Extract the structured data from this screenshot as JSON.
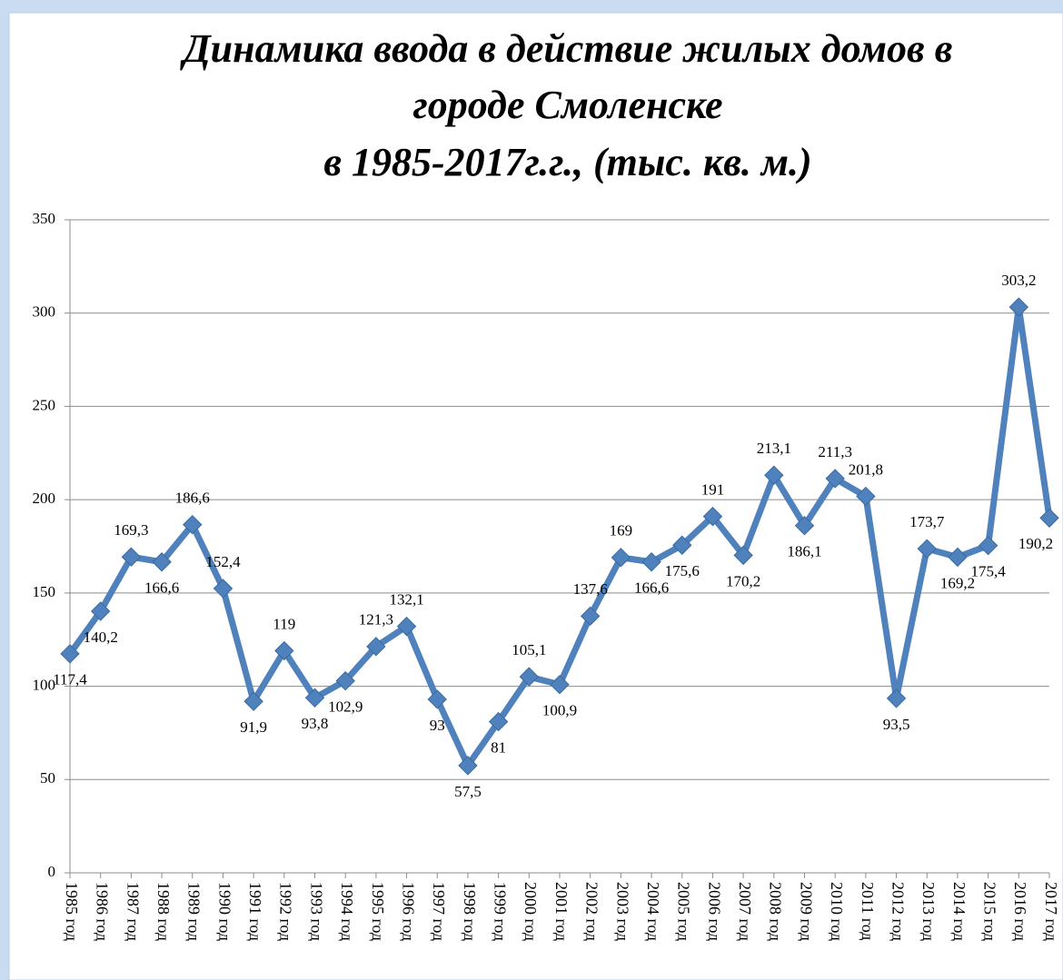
{
  "chart_data": {
    "type": "line",
    "title": [
      "Динамика ввода в действие жилых домов в",
      "городе Смоленске",
      "в 1985-2017г.г., (тыс. кв. м.)"
    ],
    "categories": [
      "1985 год",
      "1986 год",
      "1987 год",
      "1988 год",
      "1989 год",
      "1990 год",
      "1991 год",
      "1992 год",
      "1993 год",
      "1994 год",
      "1995 год",
      "1996 год",
      "1997 год",
      "1998 год",
      "1999 год",
      "2000 год",
      "2001 год",
      "2002 год",
      "2003 год",
      "2004 год",
      "2005 год",
      "2006 год",
      "2007 год",
      "2008 год",
      "2009 год",
      "2010 год",
      "2011 год",
      "2012 год",
      "2013 год",
      "2014 год",
      "2015 год",
      "2016 год",
      "2017 год"
    ],
    "values": [
      117.4,
      140.2,
      169.3,
      166.6,
      186.6,
      152.4,
      91.9,
      119,
      93.8,
      102.9,
      121.3,
      132.1,
      93,
      57.5,
      81,
      105.1,
      100.9,
      137.6,
      169,
      166.6,
      175.6,
      191,
      170.2,
      213.1,
      186.1,
      211.3,
      201.8,
      93.5,
      173.7,
      169.2,
      175.4,
      303.2,
      190.2
    ],
    "value_labels": [
      "117,4",
      "140,2",
      "169,3",
      "166,6",
      "186,6",
      "152,4",
      "91,9",
      "119",
      "93,8",
      "102,9",
      "121,3",
      "132,1",
      "93",
      "57,5",
      "81",
      "105,1",
      "100,9",
      "137,6",
      "169",
      "166,6",
      "175,6",
      "191",
      "170,2",
      "213,1",
      "186,1",
      "211,3",
      "201,8",
      "93,5",
      "173,7",
      "169,2",
      "175,4",
      "303,2",
      "190,2"
    ],
    "color": "#4f81bd",
    "ylim": [
      0,
      350
    ],
    "yticks": [
      0,
      50,
      100,
      150,
      200,
      250,
      300,
      350
    ],
    "grid": true
  }
}
